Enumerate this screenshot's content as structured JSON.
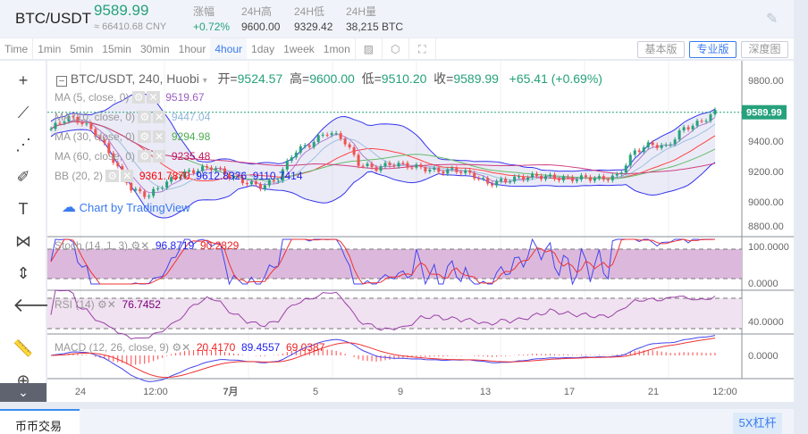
{
  "header": {
    "symbol": "BTC/USDT",
    "price": "9589.99",
    "cny": "≈ 66410.68 CNY",
    "stats": [
      {
        "label": "涨幅",
        "value": "+0.72%"
      },
      {
        "label": "24H高",
        "value": "9600.00"
      },
      {
        "label": "24H低",
        "value": "9329.42"
      },
      {
        "label": "24H量",
        "value": "38,215 BTC"
      }
    ]
  },
  "toolbar": {
    "intervals": [
      "Time",
      "1min",
      "5min",
      "15min",
      "30min",
      "1hour",
      "4hour",
      "1day",
      "1week",
      "1mon"
    ],
    "active": "4hour",
    "views": [
      "基本版",
      "专业版",
      "深度图"
    ],
    "active_view": "专业版"
  },
  "legend": {
    "title": "BTC/USDT, 240, Huobi",
    "ohlc": [
      {
        "k": "开=",
        "v": "9524.57"
      },
      {
        "k": "高=",
        "v": "9600.00"
      },
      {
        "k": "低=",
        "v": "9510.20"
      },
      {
        "k": "收=",
        "v": "9589.99"
      }
    ],
    "change": "+65.41 (+0.69%)",
    "studies": [
      {
        "name": "MA (5, close, 0)",
        "vals": [
          "9519.67"
        ],
        "colors": [
          "#9a5fc0"
        ]
      },
      {
        "name": "MA (10, close, 0)",
        "vals": [
          "9447.04"
        ],
        "colors": [
          "#8fb4dc"
        ]
      },
      {
        "name": "MA (30, close, 0)",
        "vals": [
          "9294.98"
        ],
        "colors": [
          "#4caf50"
        ]
      },
      {
        "name": "MA (60, close, 0)",
        "vals": [
          "9235.48"
        ],
        "colors": [
          "#c2185b"
        ]
      },
      {
        "name": "BB (20, 2)",
        "vals": [
          "9361.7870",
          "9612.8326",
          "9110.7414"
        ],
        "colors": [
          "#ff0000",
          "#2222ee",
          "#2222ee"
        ]
      }
    ],
    "watermark": "Chart by TradingView"
  },
  "stoch": {
    "name": "Stoch (14, 1, 3)",
    "vals": [
      "96.8719",
      "90.2829"
    ],
    "axis": [
      "100.0000",
      "0.0000"
    ]
  },
  "rsi": {
    "name": "RSI (14)",
    "val": "76.7452",
    "axis": "40.0000"
  },
  "macd": {
    "name": "MACD (12, 26, close, 9)",
    "vals": [
      "20.4170",
      "89.4557",
      "69.0387"
    ],
    "axis": "0.0000"
  },
  "price_axis": [
    "9800.00",
    "9400.00",
    "9200.00",
    "9000.00",
    "8800.00"
  ],
  "last_price": "9589.99",
  "time_axis": [
    "24",
    "12:00",
    "7月",
    "5",
    "9",
    "13",
    "17",
    "21",
    "12:00"
  ],
  "bottom": {
    "tab": "币币交易",
    "leverage": "5X杠杆"
  },
  "colors": {
    "up": "#26a17b",
    "down": "#ef5350",
    "accent": "#3a7bf0"
  },
  "price_path": [
    9480,
    9560,
    9520,
    9420,
    9250,
    9080,
    9040,
    9120,
    9180,
    9210,
    9230,
    9170,
    9130,
    9100,
    9150,
    9330,
    9380,
    9460,
    9420,
    9250,
    9220,
    9250,
    9240,
    9220,
    9200,
    9210,
    9180,
    9120,
    9140,
    9160,
    9170,
    9160,
    9150,
    9160,
    9150,
    9170,
    9330,
    9380,
    9360,
    9480,
    9520,
    9590
  ]
}
